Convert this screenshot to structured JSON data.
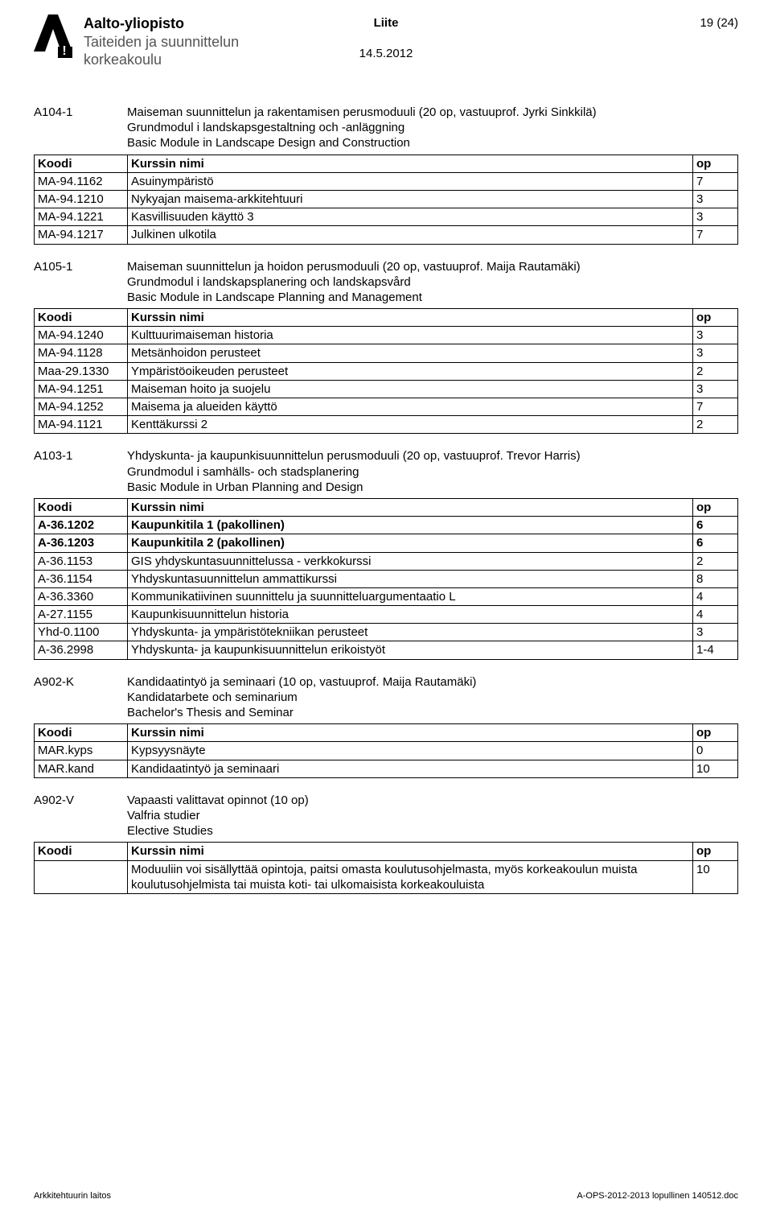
{
  "header": {
    "institutionLine1": "Aalto-yliopisto",
    "institutionLine2": "Taiteiden ja suunnittelun",
    "institutionLine3": "korkeakoulu",
    "centerLabel": "Liite",
    "date": "14.5.2012",
    "pageLabel": "19 (24)"
  },
  "modules": [
    {
      "code": "A104-1",
      "titleLines": [
        "Maiseman suunnittelun ja rakentamisen perusmoduuli (20 op, vastuuprof. Jyrki Sinkkilä)",
        "Grundmodul i landskapsgestaltning och -anläggning",
        "Basic Module in Landscape Design and Construction"
      ],
      "headers": [
        "Koodi",
        "Kurssin nimi",
        "op"
      ],
      "rows": [
        {
          "code": "MA-94.1162",
          "name": "Asuinympäristö",
          "op": "7",
          "bold": false
        },
        {
          "code": "MA-94.1210",
          "name": "Nykyajan maisema-arkkitehtuuri",
          "op": "3",
          "bold": false
        },
        {
          "code": "MA-94.1221",
          "name": "Kasvillisuuden käyttö 3",
          "op": "3",
          "bold": false
        },
        {
          "code": "MA-94.1217",
          "name": "Julkinen ulkotila",
          "op": "7",
          "bold": false
        }
      ]
    },
    {
      "code": "A105-1",
      "titleLines": [
        "Maiseman suunnittelun ja hoidon perusmoduuli (20 op, vastuuprof. Maija Rautamäki)",
        "Grundmodul i landskapsplanering och landskapsvård",
        "Basic Module in Landscape Planning and Management"
      ],
      "headers": [
        "Koodi",
        "Kurssin nimi",
        "op"
      ],
      "rows": [
        {
          "code": "MA-94.1240",
          "name": "Kulttuurimaiseman historia",
          "op": "3",
          "bold": false
        },
        {
          "code": "MA-94.1128",
          "name": "Metsänhoidon perusteet",
          "op": "3",
          "bold": false
        },
        {
          "code": "Maa-29.1330",
          "name": "Ympäristöoikeuden perusteet",
          "op": "2",
          "bold": false
        },
        {
          "code": "MA-94.1251",
          "name": "Maiseman hoito ja suojelu",
          "op": "3",
          "bold": false
        },
        {
          "code": "MA-94.1252",
          "name": "Maisema ja alueiden käyttö",
          "op": "7",
          "bold": false
        },
        {
          "code": "MA-94.1121",
          "name": "Kenttäkurssi 2",
          "op": "2",
          "bold": false
        }
      ]
    },
    {
      "code": "A103-1",
      "titleLines": [
        "Yhdyskunta- ja kaupunkisuunnittelun perusmoduuli (20 op, vastuuprof. Trevor Harris)",
        "Grundmodul i samhälls- och stadsplanering",
        "Basic Module in Urban Planning and Design"
      ],
      "headers": [
        "Koodi",
        "Kurssin nimi",
        "op"
      ],
      "rows": [
        {
          "code": "A-36.1202",
          "name": "Kaupunkitila 1 (pakollinen)",
          "op": "6",
          "bold": true
        },
        {
          "code": "A-36.1203",
          "name": "Kaupunkitila 2 (pakollinen)",
          "op": "6",
          "bold": true
        },
        {
          "code": "A-36.1153",
          "name": "GIS yhdyskuntasuunnittelussa - verkkokurssi",
          "op": "2",
          "bold": false
        },
        {
          "code": "A-36.1154",
          "name": "Yhdyskuntasuunnittelun ammattikurssi",
          "op": "8",
          "bold": false
        },
        {
          "code": "A-36.3360",
          "name": "Kommunikatiivinen suunnittelu ja suunnitteluargumentaatio L",
          "op": "4",
          "bold": false
        },
        {
          "code": "A-27.1155",
          "name": "Kaupunkisuunnittelun historia",
          "op": "4",
          "bold": false
        },
        {
          "code": "Yhd-0.1100",
          "name": "Yhdyskunta- ja ympäristötekniikan perusteet",
          "op": "3",
          "bold": false
        },
        {
          "code": "A-36.2998",
          "name": "Yhdyskunta- ja kaupunkisuunnittelun erikoistyöt",
          "op": "1-4",
          "bold": false
        }
      ]
    },
    {
      "code": "A902-K",
      "titleLines": [
        "Kandidaatintyö ja seminaari (10 op, vastuuprof. Maija Rautamäki)",
        "Kandidatarbete och seminarium",
        "Bachelor's Thesis and Seminar"
      ],
      "headers": [
        "Koodi",
        "Kurssin nimi",
        "op"
      ],
      "rows": [
        {
          "code": "MAR.kyps",
          "name": "Kypsyysnäyte",
          "op": "0",
          "bold": false
        },
        {
          "code": "MAR.kand",
          "name": "Kandidaatintyö ja seminaari",
          "op": "10",
          "bold": false
        }
      ]
    },
    {
      "code": "A902-V",
      "titleLines": [
        "Vapaasti valittavat opinnot (10 op)",
        "Valfria studier",
        "Elective Studies"
      ],
      "headers": [
        "Koodi",
        "Kurssin nimi",
        "op"
      ],
      "rows": [
        {
          "code": "",
          "name": "Moduuliin voi sisällyttää opintoja, paitsi omasta koulutusohjelmasta, myös korkeakoulun muista koulutusohjelmista tai muista koti- tai ulkomaisista korkeakouluista",
          "op": "10",
          "bold": false
        }
      ]
    }
  ],
  "footer": {
    "left": "Arkkitehtuurin laitos",
    "right": "A-OPS-2012-2013 lopullinen 140512.doc"
  }
}
